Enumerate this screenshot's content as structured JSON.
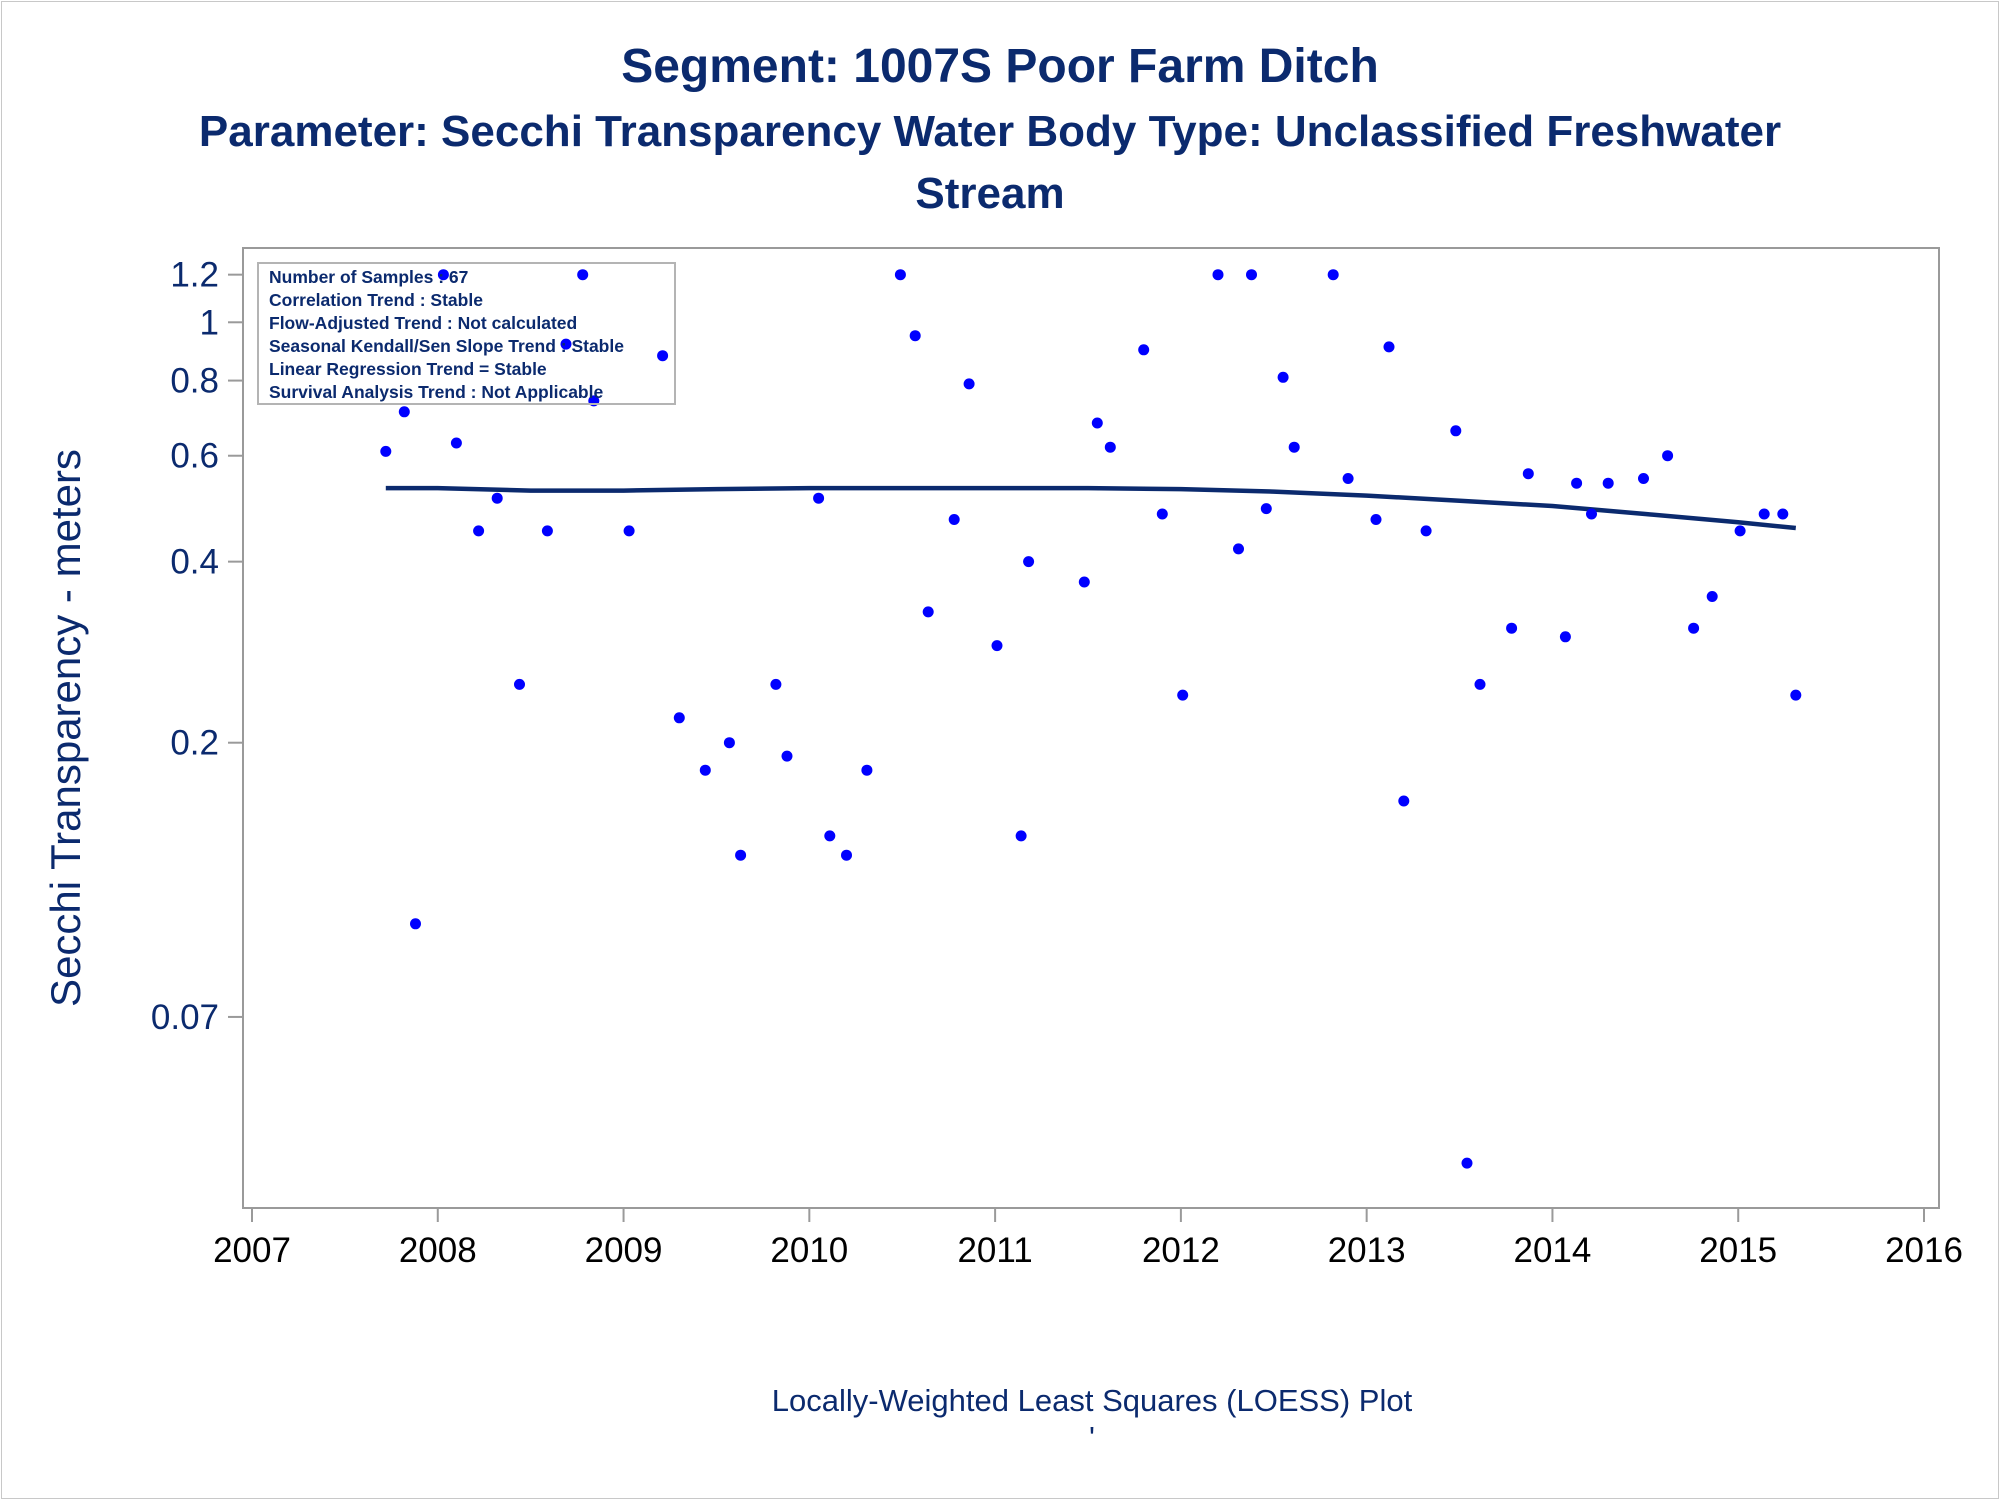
{
  "chart_data": {
    "type": "scatter",
    "title": "Segment: 1007S  Poor Farm Ditch",
    "subtitle_line1": "Parameter: Secchi Transparency   Water Body Type: Unclassified Freshwater",
    "subtitle_line2": "Stream",
    "ylabel": "Secchi Transparency - meters",
    "xlabel": "",
    "footnote": "Locally-Weighted Least Squares (LOESS) Plot",
    "footnote_mark": "'",
    "y_scale": "log",
    "xlim": [
      2007,
      2016
    ],
    "ylim": [
      0.035,
      1.25
    ],
    "x_ticks": [
      "2007",
      "2008",
      "2009",
      "2010",
      "2011",
      "2012",
      "2013",
      "2014",
      "2015",
      "2016"
    ],
    "y_ticks": [
      {
        "value": 0.07,
        "label": "0.07"
      },
      {
        "value": 0.2,
        "label": "0.2"
      },
      {
        "value": 0.4,
        "label": "0.4"
      },
      {
        "value": 0.6,
        "label": "0.6"
      },
      {
        "value": 0.8,
        "label": "0.8"
      },
      {
        "value": 1.0,
        "label": "1"
      },
      {
        "value": 1.2,
        "label": "1.2"
      }
    ],
    "grid": false,
    "marker_color": "#0000ff",
    "line_color": "#0b2a6e",
    "stats_box": [
      "Number of Samples : 67",
      "Correlation Trend : Stable",
      "Flow-Adjusted Trend : Not calculated",
      "Seasonal Kendall/Sen Slope Trend : Stable",
      "Linear Regression Trend = Stable",
      "Survival Analysis Trend : Not Applicable"
    ],
    "series": [
      {
        "type": "scatter",
        "points": [
          [
            2007.72,
            0.61
          ],
          [
            2007.82,
            0.71
          ],
          [
            2007.88,
            0.1
          ],
          [
            2008.03,
            1.2
          ],
          [
            2008.1,
            0.63
          ],
          [
            2008.22,
            0.45
          ],
          [
            2008.32,
            0.51
          ],
          [
            2008.44,
            0.25
          ],
          [
            2008.59,
            0.45
          ],
          [
            2008.69,
            0.92
          ],
          [
            2008.78,
            1.2
          ],
          [
            2008.84,
            0.74
          ],
          [
            2009.03,
            0.45
          ],
          [
            2009.21,
            0.88
          ],
          [
            2009.3,
            0.22
          ],
          [
            2009.44,
            0.18
          ],
          [
            2009.57,
            0.2
          ],
          [
            2009.63,
            0.13
          ],
          [
            2009.82,
            0.25
          ],
          [
            2009.88,
            0.19
          ],
          [
            2010.05,
            0.51
          ],
          [
            2010.11,
            0.14
          ],
          [
            2010.2,
            0.13
          ],
          [
            2010.31,
            0.18
          ],
          [
            2010.49,
            1.2
          ],
          [
            2010.57,
            0.95
          ],
          [
            2010.64,
            0.33
          ],
          [
            2010.78,
            0.47
          ],
          [
            2010.86,
            0.79
          ],
          [
            2011.01,
            0.29
          ],
          [
            2011.14,
            0.14
          ],
          [
            2011.18,
            0.4
          ],
          [
            2011.48,
            0.37
          ],
          [
            2011.55,
            0.68
          ],
          [
            2011.62,
            0.62
          ],
          [
            2011.8,
            0.9
          ],
          [
            2011.9,
            0.48
          ],
          [
            2012.01,
            0.24
          ],
          [
            2012.2,
            1.2
          ],
          [
            2012.31,
            0.42
          ],
          [
            2012.38,
            1.2
          ],
          [
            2012.46,
            0.49
          ],
          [
            2012.55,
            0.81
          ],
          [
            2012.61,
            0.62
          ],
          [
            2012.82,
            1.2
          ],
          [
            2012.9,
            0.55
          ],
          [
            2013.05,
            0.47
          ],
          [
            2013.12,
            0.91
          ],
          [
            2013.2,
            0.16
          ],
          [
            2013.32,
            0.45
          ],
          [
            2013.48,
            0.66
          ],
          [
            2013.54,
            0.04
          ],
          [
            2013.61,
            0.25
          ],
          [
            2013.78,
            0.31
          ],
          [
            2013.87,
            0.56
          ],
          [
            2014.07,
            0.3
          ],
          [
            2014.13,
            0.54
          ],
          [
            2014.21,
            0.48
          ],
          [
            2014.3,
            0.54
          ],
          [
            2014.49,
            0.55
          ],
          [
            2014.62,
            0.6
          ],
          [
            2014.76,
            0.31
          ],
          [
            2014.86,
            0.35
          ],
          [
            2015.01,
            0.45
          ],
          [
            2015.14,
            0.48
          ],
          [
            2015.24,
            0.48
          ],
          [
            2015.31,
            0.24
          ]
        ]
      },
      {
        "type": "line",
        "name": "",
        "points": [
          [
            2007.72,
            0.53
          ],
          [
            2008.0,
            0.53
          ],
          [
            2008.5,
            0.525
          ],
          [
            2009.0,
            0.525
          ],
          [
            2009.5,
            0.528
          ],
          [
            2010.0,
            0.53
          ],
          [
            2010.5,
            0.53
          ],
          [
            2011.0,
            0.53
          ],
          [
            2011.5,
            0.53
          ],
          [
            2012.0,
            0.528
          ],
          [
            2012.5,
            0.523
          ],
          [
            2013.0,
            0.515
          ],
          [
            2013.5,
            0.505
          ],
          [
            2014.0,
            0.495
          ],
          [
            2014.5,
            0.48
          ],
          [
            2015.0,
            0.465
          ],
          [
            2015.31,
            0.455
          ]
        ]
      }
    ]
  }
}
